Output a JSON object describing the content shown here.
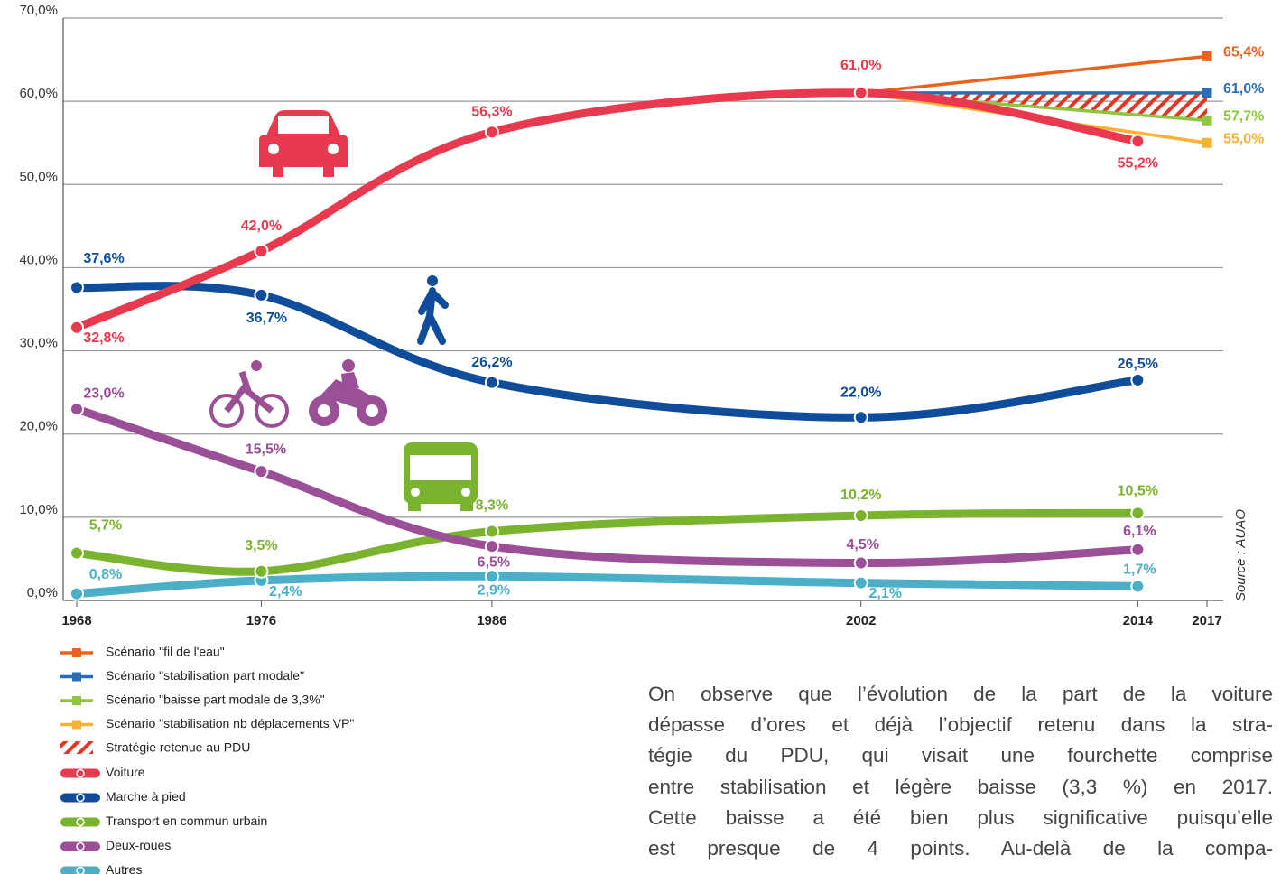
{
  "chart_data": {
    "type": "line",
    "x": [
      1968,
      1976,
      1986,
      2002,
      2014
    ],
    "xlim": [
      1968,
      2017
    ],
    "xticks": [
      1968,
      1976,
      1986,
      2002,
      2014,
      2017
    ],
    "ylim": [
      0,
      70
    ],
    "yticks": [
      {
        "value": 0,
        "label": "0,0%"
      },
      {
        "value": 10,
        "label": "10,0%"
      },
      {
        "value": 20,
        "label": "20,0%"
      },
      {
        "value": 30,
        "label": "30,0%"
      },
      {
        "value": 40,
        "label": "40,0%"
      },
      {
        "value": 50,
        "label": "50,0%"
      },
      {
        "value": 60,
        "label": "60,0%"
      },
      {
        "value": 70,
        "label": "70,0%"
      }
    ],
    "grid": true,
    "scenarios": [
      {
        "name": "Scénario \"fil de l'eau\"",
        "color": "#e8641b",
        "x": [
          2002,
          2017
        ],
        "values": [
          61.0,
          65.4
        ],
        "value_labels": [
          null,
          "65,4%"
        ]
      },
      {
        "name": "Scénario \"stabilisation part modale\"",
        "color": "#2a6db5",
        "x": [
          2002,
          2017
        ],
        "values": [
          61.0,
          61.0
        ],
        "value_labels": [
          null,
          "61,0%"
        ]
      },
      {
        "name": "Scénario \"baisse part modale de 3,3%\"",
        "color": "#8dc63f",
        "x": [
          2002,
          2017
        ],
        "values": [
          61.0,
          57.7
        ],
        "value_labels": [
          null,
          "57,7%"
        ]
      },
      {
        "name": "Scénario \"stabilisation nb déplacements VP\"",
        "color": "#f9b233",
        "x": [
          2002,
          2017
        ],
        "values": [
          61.0,
          55.0
        ],
        "value_labels": [
          null,
          "55,0%"
        ]
      }
    ],
    "strategy": {
      "name": "Stratégie retenue au PDU",
      "color": "#e63322"
    },
    "series": [
      {
        "name": "Voiture",
        "color": "#e8394f",
        "values": [
          32.8,
          42.0,
          56.3,
          61.0,
          55.2
        ],
        "value_labels": [
          "32,8%",
          "42,0%",
          "56,3%",
          "61,0%",
          "55,2%"
        ]
      },
      {
        "name": "Marche à pied",
        "color": "#0f4c9a",
        "values": [
          37.6,
          36.7,
          26.2,
          22.0,
          26.5
        ],
        "value_labels": [
          "37,6%",
          "36,7%",
          "26,2%",
          "22,0%",
          "26,5%"
        ]
      },
      {
        "name": "Transport en commun urbain",
        "color": "#7ab32e",
        "values": [
          5.7,
          3.5,
          8.3,
          10.2,
          10.5
        ],
        "value_labels": [
          "5,7%",
          "3,5%",
          "8,3%",
          "10,2%",
          "10,5%"
        ]
      },
      {
        "name": "Deux-roues",
        "color": "#9b4f96",
        "values": [
          23.0,
          15.5,
          6.5,
          4.5,
          6.1
        ],
        "value_labels": [
          "23,0%",
          "15,5%",
          "6,5%",
          "4,5%",
          "6,1%"
        ]
      },
      {
        "name": "Autres",
        "color": "#4bafc8",
        "values": [
          0.8,
          2.4,
          2.9,
          2.1,
          1.7
        ],
        "value_labels": [
          "0,8%",
          "2,4%",
          "2,9%",
          "2,1%",
          "1,7%"
        ]
      }
    ],
    "source": "Source : AUAO"
  },
  "paragraph": {
    "lines": [
      "On observe que l’évolution de la part de la voiture",
      "dépasse d’ores et déjà l’objectif retenu dans la stra-",
      "tégie du PDU, qui visait une fourchette comprise",
      "entre stabilisation et légère baisse (3,3 %) en 2017.",
      "Cette baisse a été bien plus significative puisqu’elle",
      "est presque de 4 points. Au-delà de la compa-"
    ]
  }
}
